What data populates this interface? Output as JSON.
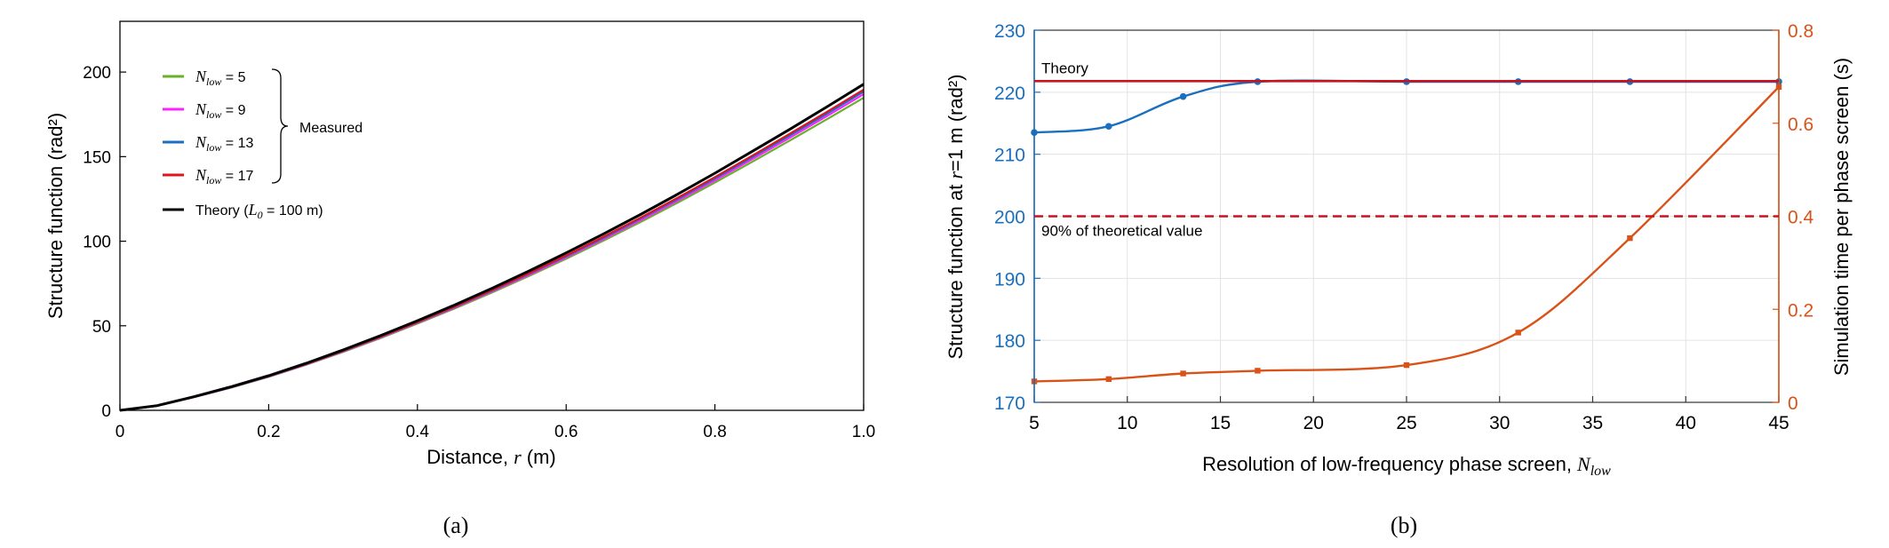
{
  "chart_data": [
    {
      "type": "line",
      "panel_label": "(a)",
      "xlabel": "Distance, ",
      "xlabel_var": "r",
      "xlabel_unit": " (m)",
      "ylabel": "Structure function (rad²)",
      "xlim": [
        0,
        1.0
      ],
      "ylim": [
        0,
        230
      ],
      "xticks": [
        0,
        0.2,
        0.4,
        0.6,
        0.8,
        1.0
      ],
      "xtick_labels": [
        "0",
        "0.2",
        "0.4",
        "0.6",
        "0.8",
        "1.0"
      ],
      "yticks": [
        0,
        50,
        100,
        150,
        200
      ],
      "ytick_labels": [
        "0",
        "50",
        "100",
        "150",
        "200"
      ],
      "grid": false,
      "legend_position": "top-left",
      "legend_group_label": "Measured",
      "x": [
        0,
        0.05,
        0.1,
        0.15,
        0.2,
        0.25,
        0.3,
        0.35,
        0.4,
        0.45,
        0.5,
        0.55,
        0.6,
        0.65,
        0.7,
        0.75,
        0.8,
        0.85,
        0.9,
        0.95,
        1.0
      ],
      "series": [
        {
          "name": "N_low = 5",
          "legend_var": "N",
          "legend_sub": "low",
          "legend_val": " = 5",
          "color": "#6ab02e",
          "values": [
            0,
            2.6,
            7.8,
            13.5,
            19.8,
            26.9,
            34.5,
            42.6,
            51.3,
            60.2,
            69.6,
            79.4,
            89.6,
            100.3,
            111.3,
            122.8,
            134.7,
            146.9,
            159.3,
            171.9,
            184.8
          ]
        },
        {
          "name": "N_low = 9",
          "legend_var": "N",
          "legend_sub": "low",
          "legend_val": " = 9",
          "color": "#ff22ff",
          "values": [
            0,
            2.7,
            7.9,
            13.6,
            20.0,
            27.1,
            34.8,
            43.0,
            51.7,
            60.7,
            70.2,
            80.1,
            90.4,
            101.2,
            112.4,
            124.0,
            136.0,
            148.4,
            161.0,
            173.8,
            186.9
          ]
        },
        {
          "name": "N_low = 13",
          "legend_var": "N",
          "legend_sub": "low",
          "legend_val": " = 13",
          "color": "#1a6fbf",
          "values": [
            0,
            2.7,
            8.0,
            13.7,
            20.1,
            27.3,
            35.0,
            43.3,
            52.0,
            61.1,
            70.7,
            80.7,
            91.1,
            102.0,
            113.3,
            125.0,
            137.1,
            149.6,
            162.3,
            175.2,
            188.4
          ]
        },
        {
          "name": "N_low = 17",
          "legend_var": "N",
          "legend_sub": "low",
          "legend_val": " = 17",
          "color": "#e0141e",
          "values": [
            0,
            2.7,
            8.0,
            13.8,
            20.2,
            27.4,
            35.2,
            43.5,
            52.2,
            61.4,
            71.0,
            81.1,
            91.6,
            102.6,
            113.9,
            125.7,
            137.9,
            150.5,
            163.3,
            176.3,
            189.6
          ]
        },
        {
          "name": "Theory (L0 = 100 m)",
          "legend_var": "L",
          "legend_sub": "0",
          "legend_prefix": "Theory (",
          "legend_val": " = 100 m)",
          "color": "#000000",
          "values": [
            0,
            2.8,
            8.1,
            14.0,
            20.5,
            27.8,
            35.7,
            44.1,
            53.0,
            62.3,
            72.1,
            82.4,
            93.1,
            104.3,
            115.8,
            127.8,
            140.2,
            153.0,
            166.0,
            179.3,
            192.8
          ]
        }
      ]
    },
    {
      "type": "line",
      "panel_label": "(b)",
      "xlabel": "Resolution of low-frequency phase screen, ",
      "xlabel_var": "N",
      "xlabel_sub": "low",
      "ylabel_left_prefix": "Structure function at ",
      "ylabel_left_var": "r",
      "ylabel_left_suffix": "=1 m (rad²)",
      "ylabel_right": "Simulation time per phase screen (s)",
      "xlim": [
        5,
        45
      ],
      "ylim_left": [
        170,
        230
      ],
      "ylim_right": [
        0,
        0.8
      ],
      "xticks": [
        5,
        10,
        15,
        20,
        25,
        30,
        35,
        40,
        45
      ],
      "xtick_labels": [
        "5",
        "10",
        "15",
        "20",
        "25",
        "30",
        "35",
        "40",
        "45"
      ],
      "yticks_left": [
        170,
        180,
        190,
        200,
        210,
        220,
        230
      ],
      "ytick_labels_left": [
        "170",
        "180",
        "190",
        "200",
        "210",
        "220",
        "230"
      ],
      "yticks_right": [
        0,
        0.2,
        0.4,
        0.6,
        0.8
      ],
      "ytick_labels_right": [
        "0",
        "0.2",
        "0.4",
        "0.6",
        "0.8"
      ],
      "grid": true,
      "left_axis_color": "#1a6fbf",
      "right_axis_color": "#d95319",
      "reference_lines": [
        {
          "label": "Theory",
          "value": 221.8,
          "axis": "left",
          "style": "solid",
          "color": "#c8141e"
        },
        {
          "label": "90% of theoretical value",
          "value": 200,
          "axis": "left",
          "style": "dashed",
          "color": "#c8141e"
        }
      ],
      "series": [
        {
          "axis": "left",
          "color": "#1a6fbf",
          "x": [
            5,
            9,
            13,
            17,
            25,
            31,
            37,
            45
          ],
          "values": [
            213.5,
            214.5,
            219.3,
            221.7,
            221.7,
            221.7,
            221.7,
            221.7
          ]
        },
        {
          "axis": "right",
          "color": "#d95319",
          "x": [
            5,
            9,
            13,
            17,
            25,
            31,
            37,
            45
          ],
          "values": [
            0.045,
            0.05,
            0.062,
            0.068,
            0.08,
            0.15,
            0.353,
            0.678
          ]
        }
      ]
    }
  ]
}
